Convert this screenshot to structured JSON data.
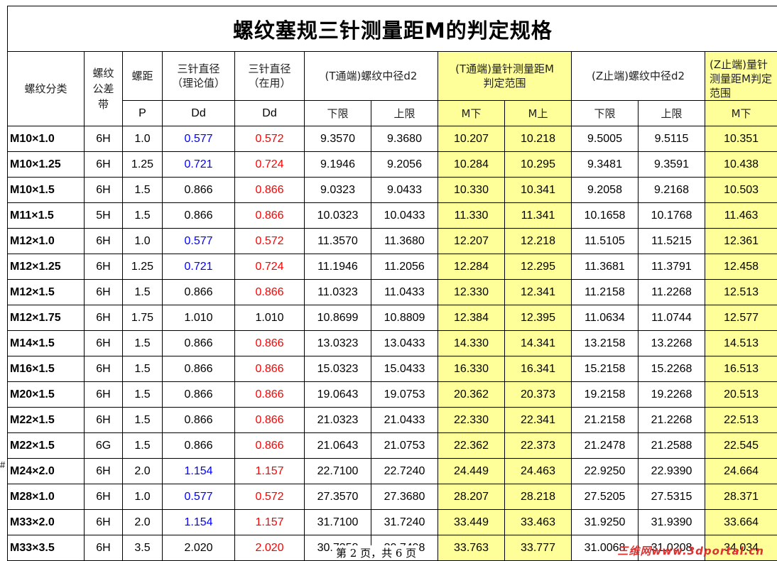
{
  "title": "螺纹塞规三针测量距M的判定规格",
  "headers": {
    "thread_class": "螺纹分类",
    "tolerance_band": "螺纹公差带",
    "pitch": "螺距",
    "pitch_sub": "P",
    "needle_theory": "三针直径（理论值）",
    "needle_theory_sub": "Dd",
    "needle_used": "三针直径（在用）",
    "needle_used_sub": "Dd",
    "t_end_d2": "(T通端)螺纹中径d2",
    "t_end_m": "(T通端)量针测量距M判定范围",
    "z_end_d2": "(Z止端)螺纹中径d2",
    "z_end_m": "(Z止端)量针测量距M判定范围",
    "lower": "下限",
    "upper": "上限",
    "m_lower": "M下",
    "m_upper": "M上"
  },
  "rows": [
    {
      "spec": "M10×1.0",
      "band": "6H",
      "p": "1.0",
      "dd_theory": "0.577",
      "dd_used": "0.572",
      "t_lo": "9.3570",
      "t_hi": "9.3680",
      "t_mlo": "10.207",
      "t_mhi": "10.218",
      "z_lo": "9.5005",
      "z_hi": "9.5115",
      "z_mlo": "10.351"
    },
    {
      "spec": "M10×1.25",
      "band": "6H",
      "p": "1.25",
      "dd_theory": "0.721",
      "dd_used": "0.724",
      "t_lo": "9.1946",
      "t_hi": "9.2056",
      "t_mlo": "10.284",
      "t_mhi": "10.295",
      "z_lo": "9.3481",
      "z_hi": "9.3591",
      "z_mlo": "10.438"
    },
    {
      "spec": "M10×1.5",
      "band": "6H",
      "p": "1.5",
      "dd_theory": "0.866",
      "dd_used": "0.866",
      "t_lo": "9.0323",
      "t_hi": "9.0433",
      "t_mlo": "10.330",
      "t_mhi": "10.341",
      "z_lo": "9.2058",
      "z_hi": "9.2168",
      "z_mlo": "10.503"
    },
    {
      "spec": "M11×1.5",
      "band": "5H",
      "p": "1.5",
      "dd_theory": "0.866",
      "dd_used": "0.866",
      "t_lo": "10.0323",
      "t_hi": "10.0433",
      "t_mlo": "11.330",
      "t_mhi": "11.341",
      "z_lo": "10.1658",
      "z_hi": "10.1768",
      "z_mlo": "11.463"
    },
    {
      "spec": "M12×1.0",
      "band": "6H",
      "p": "1.0",
      "dd_theory": "0.577",
      "dd_used": "0.572",
      "t_lo": "11.3570",
      "t_hi": "11.3680",
      "t_mlo": "12.207",
      "t_mhi": "12.218",
      "z_lo": "11.5105",
      "z_hi": "11.5215",
      "z_mlo": "12.361"
    },
    {
      "spec": "M12×1.25",
      "band": "6H",
      "p": "1.25",
      "dd_theory": "0.721",
      "dd_used": "0.724",
      "t_lo": "11.1946",
      "t_hi": "11.2056",
      "t_mlo": "12.284",
      "t_mhi": "12.295",
      "z_lo": "11.3681",
      "z_hi": "11.3791",
      "z_mlo": "12.458"
    },
    {
      "spec": "M12×1.5",
      "band": "6H",
      "p": "1.5",
      "dd_theory": "0.866",
      "dd_used": "0.866",
      "t_lo": "11.0323",
      "t_hi": "11.0433",
      "t_mlo": "12.330",
      "t_mhi": "12.341",
      "z_lo": "11.2158",
      "z_hi": "11.2268",
      "z_mlo": "12.513"
    },
    {
      "spec": "M12×1.75",
      "band": "6H",
      "p": "1.75",
      "dd_theory": "1.010",
      "dd_used": "1.010",
      "t_lo": "10.8699",
      "t_hi": "10.8809",
      "t_mlo": "12.384",
      "t_mhi": "12.395",
      "z_lo": "11.0634",
      "z_hi": "11.0744",
      "z_mlo": "12.577"
    },
    {
      "spec": "M14×1.5",
      "band": "6H",
      "p": "1.5",
      "dd_theory": "0.866",
      "dd_used": "0.866",
      "t_lo": "13.0323",
      "t_hi": "13.0433",
      "t_mlo": "14.330",
      "t_mhi": "14.341",
      "z_lo": "13.2158",
      "z_hi": "13.2268",
      "z_mlo": "14.513"
    },
    {
      "spec": "M16×1.5",
      "band": "6H",
      "p": "1.5",
      "dd_theory": "0.866",
      "dd_used": "0.866",
      "t_lo": "15.0323",
      "t_hi": "15.0433",
      "t_mlo": "16.330",
      "t_mhi": "16.341",
      "z_lo": "15.2158",
      "z_hi": "15.2268",
      "z_mlo": "16.513"
    },
    {
      "spec": "M20×1.5",
      "band": "6H",
      "p": "1.5",
      "dd_theory": "0.866",
      "dd_used": "0.866",
      "t_lo": "19.0643",
      "t_hi": "19.0753",
      "t_mlo": "20.362",
      "t_mhi": "20.373",
      "z_lo": "19.2158",
      "z_hi": "19.2268",
      "z_mlo": "20.513"
    },
    {
      "spec": "M22×1.5",
      "band": "6H",
      "p": "1.5",
      "dd_theory": "0.866",
      "dd_used": "0.866",
      "t_lo": "21.0323",
      "t_hi": "21.0433",
      "t_mlo": "22.330",
      "t_mhi": "22.341",
      "z_lo": "21.2158",
      "z_hi": "21.2268",
      "z_mlo": "22.513"
    },
    {
      "spec": "M22×1.5",
      "band": "6G",
      "p": "1.5",
      "dd_theory": "0.866",
      "dd_used": "0.866",
      "t_lo": "21.0643",
      "t_hi": "21.0753",
      "t_mlo": "22.362",
      "t_mhi": "22.373",
      "z_lo": "21.2478",
      "z_hi": "21.2588",
      "z_mlo": "22.545"
    },
    {
      "spec": "M24×2.0",
      "band": "6H",
      "p": "2.0",
      "dd_theory": "1.154",
      "dd_used": "1.157",
      "t_lo": "22.7100",
      "t_hi": "22.7240",
      "t_mlo": "24.449",
      "t_mhi": "24.463",
      "z_lo": "22.9250",
      "z_hi": "22.9390",
      "z_mlo": "24.664"
    },
    {
      "spec": "M28×1.0",
      "band": "6H",
      "p": "1.0",
      "dd_theory": "0.577",
      "dd_used": "0.572",
      "t_lo": "27.3570",
      "t_hi": "27.3680",
      "t_mlo": "28.207",
      "t_mhi": "28.218",
      "z_lo": "27.5205",
      "z_hi": "27.5315",
      "z_mlo": "28.371"
    },
    {
      "spec": "M33×2.0",
      "band": "6H",
      "p": "2.0",
      "dd_theory": "1.154",
      "dd_used": "1.157",
      "t_lo": "31.7100",
      "t_hi": "31.7240",
      "t_mlo": "33.449",
      "t_mhi": "33.463",
      "z_lo": "31.9250",
      "z_hi": "31.9390",
      "z_mlo": "33.664"
    },
    {
      "spec": "M33×3.5",
      "band": "6H",
      "p": "3.5",
      "dd_theory": "2.020",
      "dd_used": "2.020",
      "t_lo": "30.7358",
      "t_hi": "30.7498",
      "t_mlo": "33.763",
      "t_mhi": "33.777",
      "z_lo": "31.0068",
      "z_hi": "31.0208",
      "z_mlo": "34.034"
    }
  ],
  "colors": {
    "highlight_bg": "#ffff99",
    "theory_blue": "#0000ff",
    "used_red": "#ff0000"
  },
  "row_marker": "#",
  "footer": {
    "page_number": "第 2 页，共 6 页",
    "watermark": "三维网www.3dportal.cn"
  }
}
